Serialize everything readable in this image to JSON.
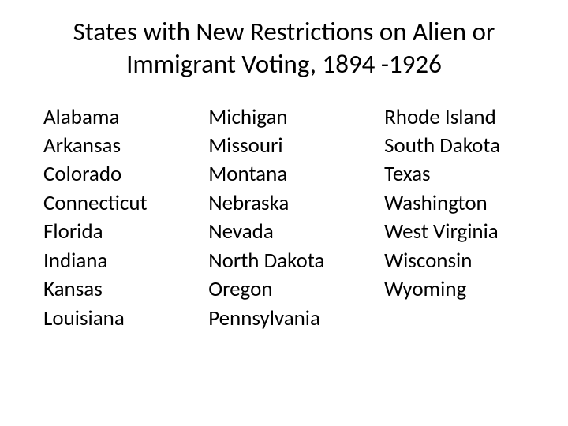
{
  "title": "States with New Restrictions on Alien or Immigrant Voting, 1894 -1926",
  "columns": [
    [
      "Alabama",
      "Arkansas",
      "Colorado",
      "Connecticut",
      "Florida",
      "Indiana",
      "Kansas",
      "Louisiana"
    ],
    [
      "Michigan",
      "Missouri",
      "Montana",
      "Nebraska",
      "Nevada",
      "North Dakota",
      "Oregon",
      "Pennsylvania"
    ],
    [
      "Rhode Island",
      "South Dakota",
      "Texas",
      "Washington",
      "West Virginia",
      "Wisconsin",
      "Wyoming"
    ]
  ],
  "style": {
    "background_color": "#ffffff",
    "text_color": "#000000",
    "title_fontsize": 33,
    "item_fontsize": 27,
    "font_family": "Calibri"
  }
}
